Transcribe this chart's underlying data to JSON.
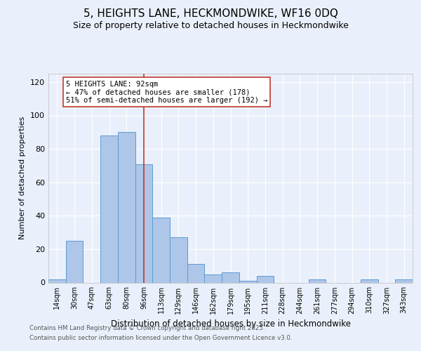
{
  "title": "5, HEIGHTS LANE, HECKMONDWIKE, WF16 0DQ",
  "subtitle": "Size of property relative to detached houses in Heckmondwike",
  "xlabel": "Distribution of detached houses by size in Heckmondwike",
  "ylabel": "Number of detached properties",
  "bar_labels": [
    "14sqm",
    "30sqm",
    "47sqm",
    "63sqm",
    "80sqm",
    "96sqm",
    "113sqm",
    "129sqm",
    "146sqm",
    "162sqm",
    "179sqm",
    "195sqm",
    "211sqm",
    "228sqm",
    "244sqm",
    "261sqm",
    "277sqm",
    "294sqm",
    "310sqm",
    "327sqm",
    "343sqm"
  ],
  "bar_values": [
    2,
    25,
    0,
    88,
    90,
    71,
    39,
    27,
    11,
    5,
    6,
    1,
    4,
    0,
    0,
    2,
    0,
    0,
    2,
    0,
    2
  ],
  "bar_color": "#aec6e8",
  "bar_edge_color": "#5b9bd5",
  "vline_x": 5,
  "vline_color": "#c0392b",
  "annotation_text": "5 HEIGHTS LANE: 92sqm\n← 47% of detached houses are smaller (178)\n51% of semi-detached houses are larger (192) →",
  "annotation_box_color": "#ffffff",
  "annotation_box_edge": "#c0392b",
  "ylim": [
    0,
    125
  ],
  "yticks": [
    0,
    20,
    40,
    60,
    80,
    100,
    120
  ],
  "footer1": "Contains HM Land Registry data © Crown copyright and database right 2025.",
  "footer2": "Contains public sector information licensed under the Open Government Licence v3.0.",
  "background_color": "#eaf0fb",
  "axes_background": "#eaf0fb",
  "grid_color": "#ffffff",
  "title_fontsize": 11,
  "subtitle_fontsize": 9
}
